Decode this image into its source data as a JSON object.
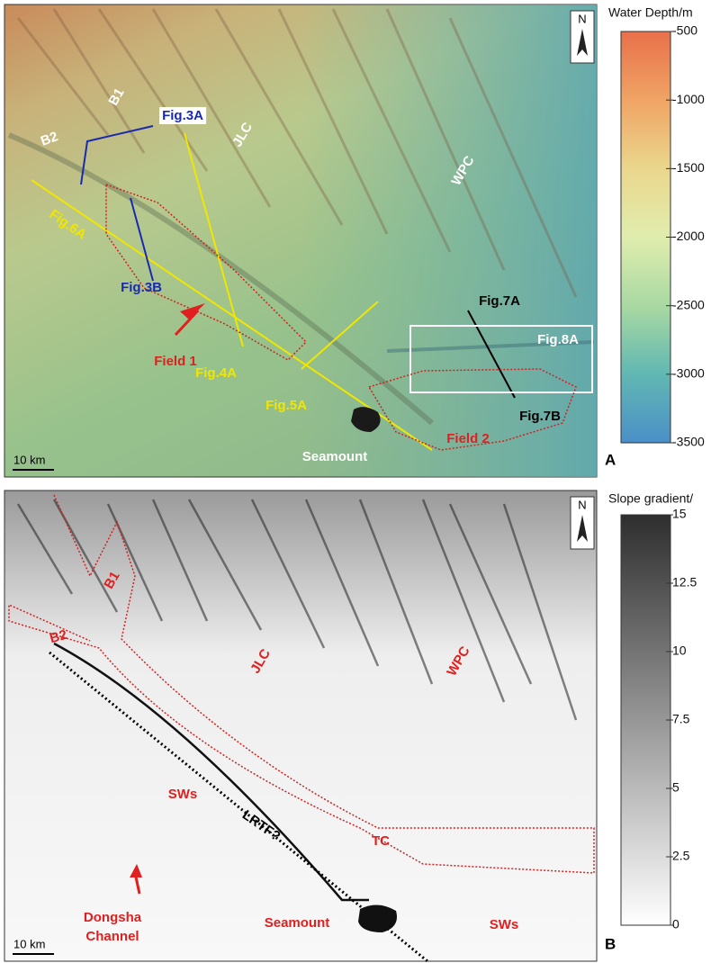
{
  "panels": [
    {
      "label": "A",
      "north": "N",
      "scale_bar": "10 km",
      "colorbar": {
        "title": "Water Depth/m",
        "ticks": [
          -500,
          -1000,
          -1500,
          -2000,
          -2500,
          -3000,
          -3500
        ]
      },
      "annotations": [
        "B1",
        "B2",
        "Fig.3A",
        "JLC",
        "WPC",
        "Fig.6A",
        "Fig.3B",
        "Field 1",
        "Fig.4A",
        "Fig.7A",
        "Fig.8A",
        "Fig.5A",
        "Fig.7B",
        "Field 2",
        "Seamount"
      ]
    },
    {
      "label": "B",
      "north": "N",
      "scale_bar": "10 km",
      "colorbar": {
        "title": "Slope gradient/",
        "ticks": [
          15,
          12.5,
          10,
          7.5,
          5,
          2.5,
          0
        ]
      },
      "annotations": [
        "B1",
        "B2",
        "JLC",
        "WPC",
        "SWs",
        "LRTF?",
        "TC",
        "Dongsha",
        "Channel",
        "Seamount",
        "SWs"
      ]
    }
  ]
}
